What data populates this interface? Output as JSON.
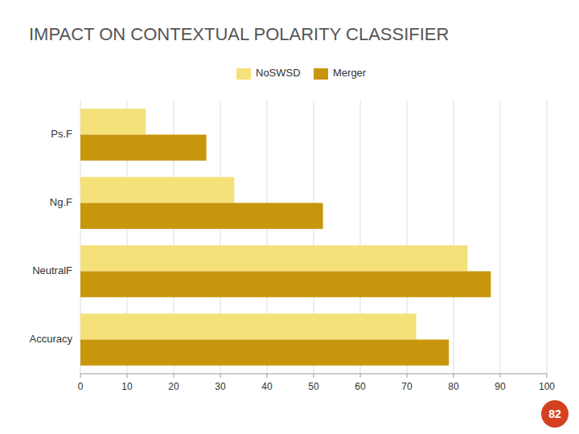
{
  "chart_data": {
    "type": "bar",
    "orientation": "horizontal",
    "title": "IMPACT ON CONTEXTUAL POLARITY CLASSIFIER",
    "categories": [
      "Ps.F",
      "Ng.F",
      "NeutralF",
      "Accuracy"
    ],
    "series": [
      {
        "name": "NoSWSD",
        "values": [
          14,
          33,
          83,
          72
        ],
        "color": "#F5E17A"
      },
      {
        "name": "Merger",
        "values": [
          27,
          52,
          88,
          79
        ],
        "color": "#C8960C"
      }
    ],
    "xlim": [
      0,
      100
    ],
    "xticks": [
      0,
      10,
      20,
      30,
      40,
      50,
      60,
      70,
      80,
      90,
      100
    ],
    "grid": true,
    "legend": "top",
    "annotations": [
      "82"
    ]
  }
}
